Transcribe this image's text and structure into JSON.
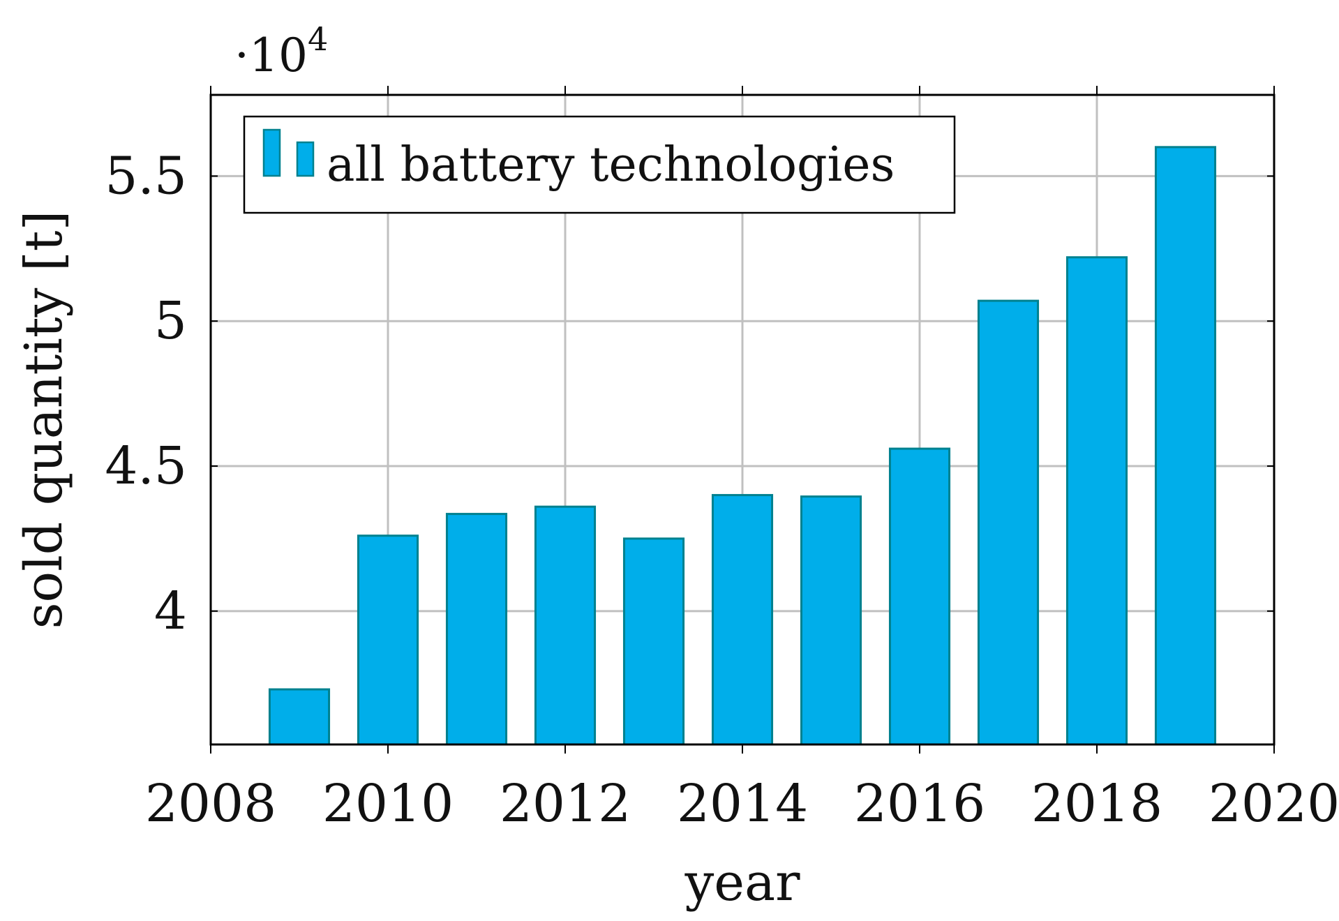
{
  "chart_data": {
    "type": "bar",
    "title": "",
    "xlabel": "year",
    "ylabel": "sold quantity [t]",
    "x": [
      2009,
      2010,
      2011,
      2012,
      2013,
      2014,
      2015,
      2016,
      2017,
      2018,
      2019
    ],
    "values": [
      37300,
      42600,
      43350,
      43600,
      42500,
      44000,
      43950,
      45600,
      50700,
      52200,
      56000
    ],
    "xlim": [
      2008,
      2020
    ],
    "ylim": [
      35400,
      57800
    ],
    "xticks": [
      2008,
      2010,
      2012,
      2014,
      2016,
      2018,
      2020
    ],
    "xtick_labels": [
      "2008",
      "2010",
      "2012",
      "2014",
      "2016",
      "2018",
      "2020"
    ],
    "yticks": [
      40000,
      45000,
      50000,
      55000
    ],
    "ytick_labels": [
      "4",
      "4.5",
      "5",
      "5.5"
    ],
    "multiplier_base": "·10",
    "multiplier_exponent": "4",
    "grid": true,
    "legend": {
      "position": "top-left",
      "entries": [
        {
          "label": "all battery technologies"
        }
      ]
    },
    "colors": {
      "bar_fill": "#00AEEA",
      "bar_edge": "#00818F",
      "grid": "#C0C0C0",
      "axis": "#000000"
    }
  }
}
